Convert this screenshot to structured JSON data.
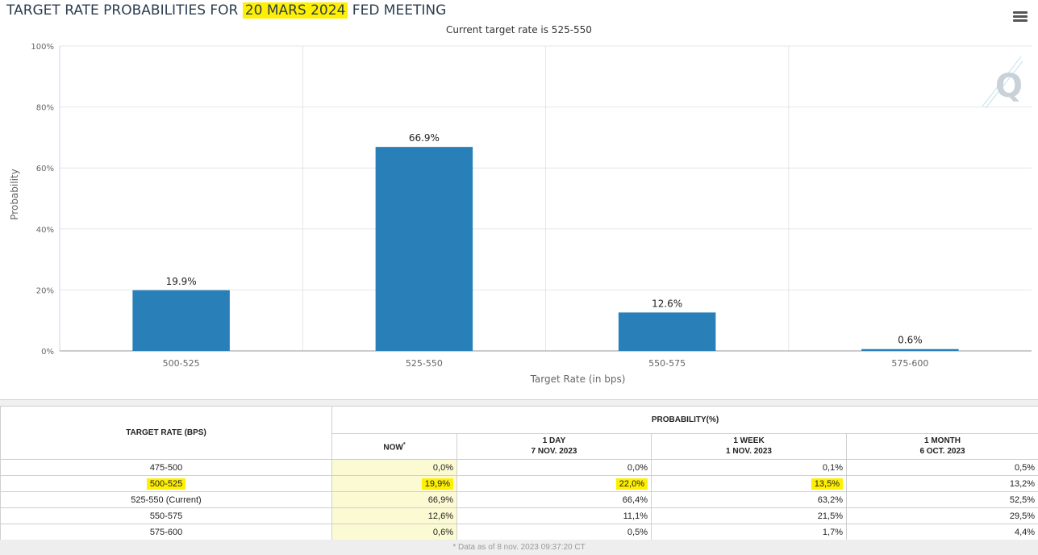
{
  "page": {
    "title_before": "TARGET RATE PROBABILITIES FOR",
    "title_date": "20 MARS 2024",
    "title_after": "FED MEETING",
    "subtitle": "Current target rate is 525-550",
    "colors": {
      "bar": "#2980b9",
      "highlight": "#ffef00",
      "now_column": "#fbfad3",
      "title": "#2c3e50"
    },
    "menu_icon": "hamburger-menu-icon",
    "logo_text": "Q"
  },
  "chart_data": {
    "type": "bar",
    "title": "TARGET RATE PROBABILITIES FOR 20 MARS 2024 FED MEETING",
    "subtitle": "Current target rate is 525-550",
    "categories": [
      "500-525",
      "525-550",
      "550-575",
      "575-600"
    ],
    "values": [
      19.9,
      66.9,
      12.6,
      0.6
    ],
    "data_labels": [
      "19.9%",
      "66.9%",
      "12.6%",
      "0.6%"
    ],
    "xlabel": "Target Rate (in bps)",
    "ylabel": "Probability",
    "ylim": [
      0,
      100
    ],
    "yticks": [
      0,
      20,
      40,
      60,
      80,
      100
    ],
    "ytick_labels": [
      "0%",
      "20%",
      "40%",
      "60%",
      "80%",
      "100%"
    ],
    "grid": true,
    "legend": "none"
  },
  "table": {
    "header_target": "TARGET RATE (BPS)",
    "header_probability": "PROBABILITY(%)",
    "columns": [
      {
        "label": "NOW",
        "sub": "",
        "sup": "*"
      },
      {
        "label": "1 DAY",
        "sub": "7 NOV. 2023",
        "sup": ""
      },
      {
        "label": "1 WEEK",
        "sub": "1 NOV. 2023",
        "sup": ""
      },
      {
        "label": "1 MONTH",
        "sub": "6 OCT. 2023",
        "sup": ""
      }
    ],
    "rows": [
      {
        "rate": "475-500",
        "values": [
          "0,0%",
          "0,0%",
          "0,1%",
          "0,5%"
        ]
      },
      {
        "rate": "500-525",
        "values": [
          "19,9%",
          "22,0%",
          "13,5%",
          "13,2%"
        ]
      },
      {
        "rate": "525-550 (Current)",
        "values": [
          "66,9%",
          "66,4%",
          "63,2%",
          "52,5%"
        ]
      },
      {
        "rate": "550-575",
        "values": [
          "12,6%",
          "11,1%",
          "21,5%",
          "29,5%"
        ]
      },
      {
        "rate": "575-600",
        "values": [
          "0,6%",
          "0,5%",
          "1,7%",
          "4,4%"
        ]
      }
    ],
    "footnote": "* Data as of 8 nov. 2023 09:37:20 CT"
  }
}
